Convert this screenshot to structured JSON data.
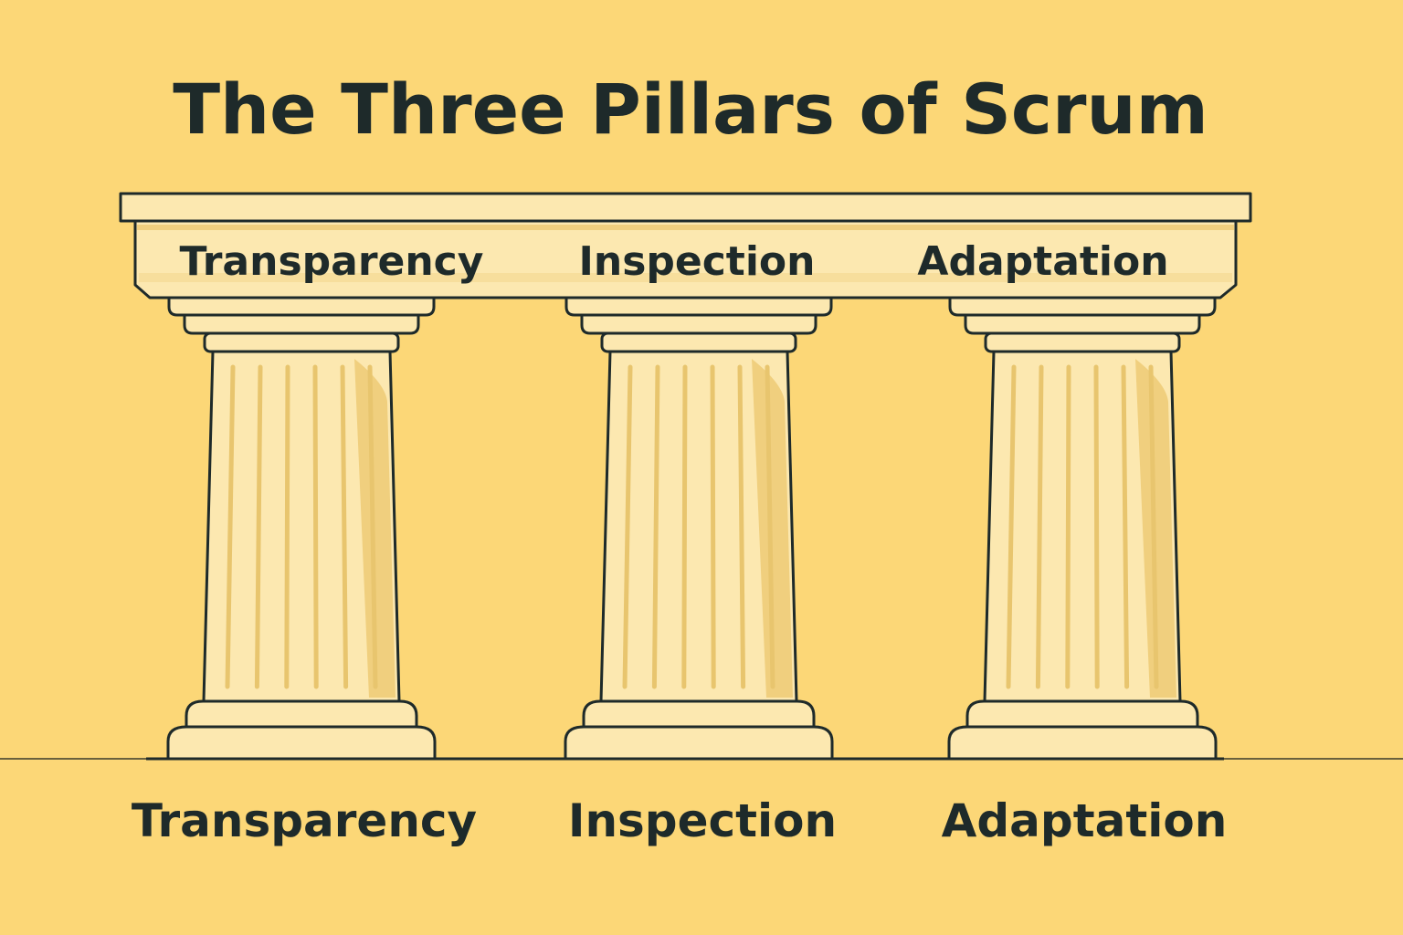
{
  "title": "The Three Pillars of Scrum",
  "colors": {
    "background": "#FCD777",
    "stone": "#FCE8B0",
    "stone_shadow": "#F0CF7E",
    "outline": "#1E2A2A"
  },
  "beam_labels": [
    "Transparency",
    "Inspection",
    "Adaptation"
  ],
  "pillars": [
    {
      "name": "Transparency",
      "label": "Transparency"
    },
    {
      "name": "Inspection",
      "label": "Inspection"
    },
    {
      "name": "Adaptation",
      "label": "Adaptation"
    }
  ]
}
